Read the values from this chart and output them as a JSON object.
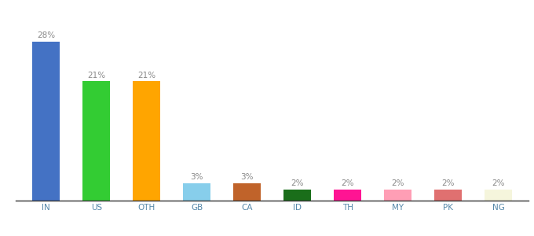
{
  "categories": [
    "IN",
    "US",
    "OTH",
    "GB",
    "CA",
    "ID",
    "TH",
    "MY",
    "PK",
    "NG"
  ],
  "values": [
    28,
    21,
    21,
    3,
    3,
    2,
    2,
    2,
    2,
    2
  ],
  "bar_colors": [
    "#4472c4",
    "#33cc33",
    "#ffa500",
    "#87ceeb",
    "#c0632a",
    "#1a6e1a",
    "#ff1493",
    "#ff9eb5",
    "#e07070",
    "#f5f5dc"
  ],
  "ylim": [
    0,
    32
  ],
  "label_color": "#888888",
  "label_fontsize": 7.5,
  "background_color": "#ffffff",
  "tick_fontsize": 7.5,
  "tick_color": "#5588aa",
  "bar_width": 0.55
}
